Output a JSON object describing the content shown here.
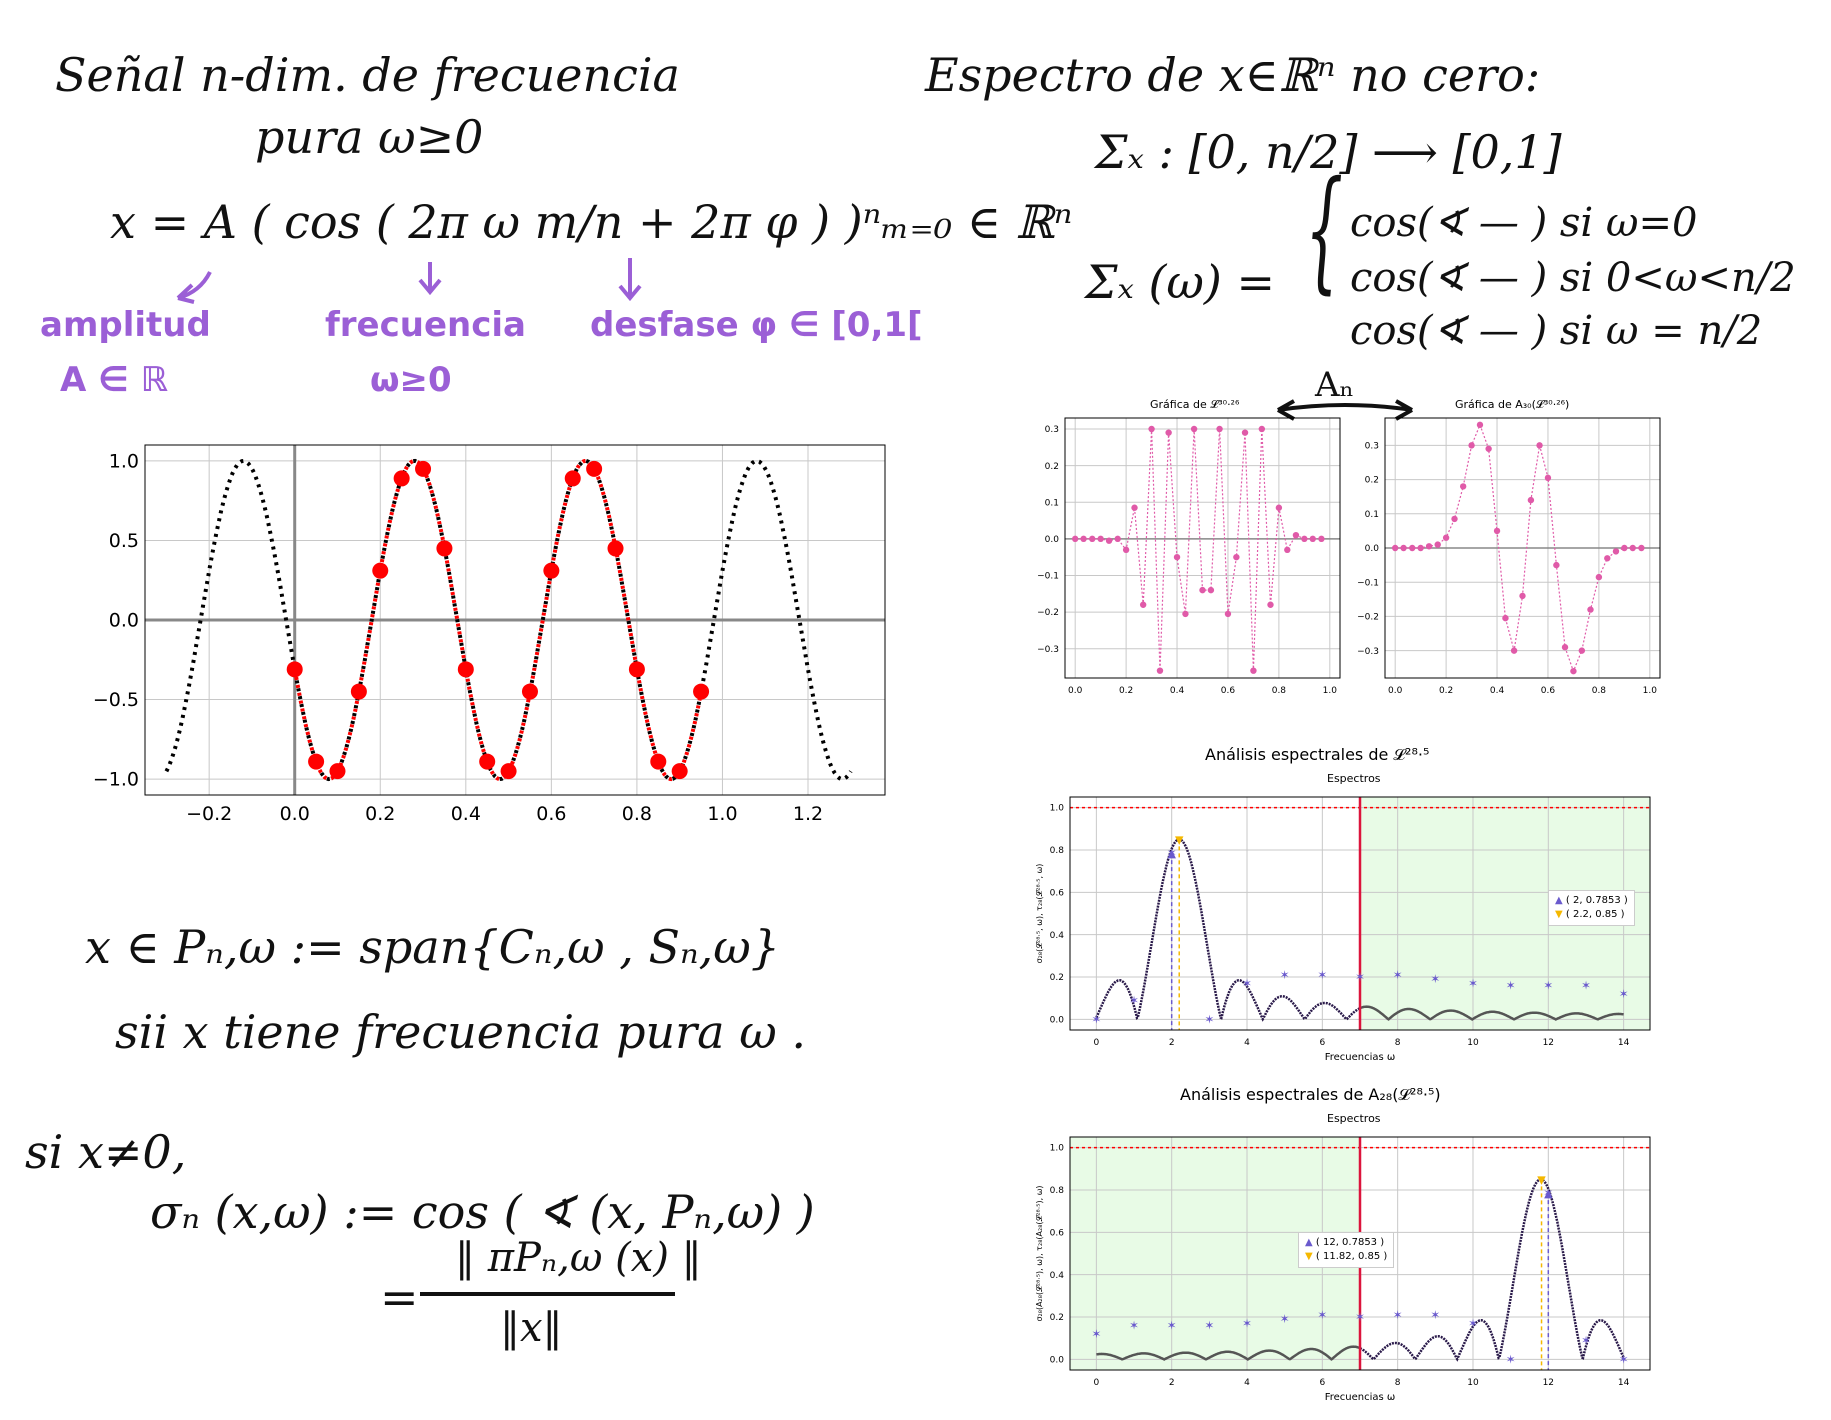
{
  "notes": {
    "title_left_1": "Señal n-dim. de frecuencia",
    "title_left_2": "pura ω≥0",
    "formula_x": "x = A ( cos ( 2π ω m/n + 2π φ ) )ⁿₘ₌₀ ∈ ℝⁿ",
    "amplitude_label": "amplitud",
    "amplitude_domain": "A ∈ ℝ",
    "frequency_label": "frecuencia",
    "frequency_domain": "ω≥0",
    "phase_label": "desfase φ ∈ [0,1[",
    "title_right": "Espectro de x∈ℝⁿ no cero:",
    "spectrum_map": "Σₓ : [0, n/2] ⟶ [0,1]",
    "spectrum_def_lhs": "Σₓ (ω) =",
    "case1": "cos(∢ — )   si  ω=0",
    "case2": "cos(∢ — )   si  0<ω<n/2",
    "case3": "cos(∢ — )   si  ω = n/2",
    "arrow_label": "Aₙ",
    "membership": "x ∈ Pₙ,ω := span{Cₙ,ω , Sₙ,ω}",
    "iff_text": "sii x tiene frecuencia pura ω .",
    "if_nonzero": "si x≠0,",
    "sigma_def": "σₙ (x,ω) := cos ( ∢ (x, Pₙ,ω) )",
    "fraction_num": "‖ πPₙ,ω (x) ‖",
    "fraction_den": "‖x‖",
    "equals": "="
  },
  "colors": {
    "ink": "#111111",
    "purple": "#9b5fd6",
    "red": "#ff0000",
    "pink": "#e05aa8",
    "navy": "#2a1a4a",
    "star": "#6a5acd",
    "orange": "#f5b800",
    "crimson": "#dc143c",
    "green_bg": "#e8fbe6"
  },
  "chart_data": [
    {
      "id": "cosine",
      "type": "line",
      "title": "",
      "xlabel": "",
      "ylabel": "",
      "xlim": [
        -0.35,
        1.38
      ],
      "ylim": [
        -1.1,
        1.1
      ],
      "xticks": [
        "−0.2",
        "0.0",
        "0.2",
        "0.4",
        "0.6",
        "0.8",
        "1.0",
        "1.2"
      ],
      "yticks": [
        "1.0",
        "0.5",
        "0.0",
        "−0.5",
        "−1.0"
      ],
      "grid": true,
      "series": [
        {
          "style": "dotted-black",
          "x_range": [
            -0.3,
            1.3
          ]
        },
        {
          "style": "dotted-red",
          "x_range": [
            0.0,
            0.95
          ]
        }
      ],
      "samples": {
        "x": [
          0.0,
          0.05,
          0.1,
          0.15,
          0.2,
          0.25,
          0.3,
          0.35,
          0.4,
          0.45,
          0.5,
          0.55,
          0.6,
          0.65,
          0.7,
          0.75,
          0.8,
          0.85,
          0.9,
          0.95
        ],
        "y": [
          -0.31,
          -0.89,
          -0.95,
          -0.45,
          0.31,
          0.89,
          0.95,
          0.45,
          -0.31,
          -0.89,
          -0.95,
          -0.45,
          0.31,
          0.89,
          0.95,
          0.45,
          -0.31,
          -0.89,
          -0.95,
          -0.45
        ]
      }
    },
    {
      "id": "signal_L",
      "type": "line",
      "title": "Gráfica de 𝓛³⁰·²⁶",
      "xlim": [
        -0.04,
        1.04
      ],
      "ylim": [
        -0.38,
        0.33
      ],
      "xticks": [
        "0.0",
        "0.2",
        "0.4",
        "0.6",
        "0.8",
        "1.0"
      ],
      "yticks": [
        "0.3",
        "0.2",
        "0.1",
        "0.0",
        "−0.1",
        "−0.2",
        "−0.3"
      ],
      "grid": true,
      "x": [
        0.0,
        0.033,
        0.067,
        0.1,
        0.133,
        0.167,
        0.2,
        0.233,
        0.267,
        0.3,
        0.333,
        0.367,
        0.4,
        0.433,
        0.467,
        0.5,
        0.533,
        0.567,
        0.6,
        0.633,
        0.667,
        0.7,
        0.733,
        0.767,
        0.8,
        0.833,
        0.867,
        0.9,
        0.933,
        0.967
      ],
      "values": [
        0.0,
        0.0,
        0.0,
        0.0,
        -0.005,
        0.0,
        -0.03,
        0.085,
        -0.18,
        0.3,
        -0.36,
        0.29,
        -0.05,
        -0.205,
        0.3,
        -0.14,
        -0.14,
        0.3,
        -0.205,
        -0.05,
        0.29,
        -0.36,
        0.3,
        -0.18,
        0.085,
        -0.03,
        0.01,
        0.0,
        0.0,
        0.0
      ]
    },
    {
      "id": "signal_A",
      "type": "line",
      "title": "Gráfica de A₃₀(𝓛³⁰·²⁶)",
      "xlim": [
        -0.04,
        1.04
      ],
      "ylim": [
        -0.38,
        0.38
      ],
      "xticks": [
        "0.0",
        "0.2",
        "0.4",
        "0.6",
        "0.8",
        "1.0"
      ],
      "yticks": [
        "0.3",
        "0.2",
        "0.1",
        "0.0",
        "−0.1",
        "−0.2",
        "−0.3"
      ],
      "grid": true,
      "x": [
        0.0,
        0.033,
        0.067,
        0.1,
        0.133,
        0.167,
        0.2,
        0.233,
        0.267,
        0.3,
        0.333,
        0.367,
        0.4,
        0.433,
        0.467,
        0.5,
        0.533,
        0.567,
        0.6,
        0.633,
        0.667,
        0.7,
        0.733,
        0.767,
        0.8,
        0.833,
        0.867,
        0.9,
        0.933,
        0.967
      ],
      "values": [
        0.0,
        0.0,
        0.0,
        0.0,
        0.005,
        0.01,
        0.03,
        0.085,
        0.18,
        0.3,
        0.36,
        0.29,
        0.05,
        -0.205,
        -0.3,
        -0.14,
        0.14,
        0.3,
        0.205,
        -0.05,
        -0.29,
        -0.36,
        -0.3,
        -0.18,
        -0.085,
        -0.03,
        -0.01,
        0.0,
        0.0,
        0.0
      ]
    },
    {
      "id": "spectrum_L",
      "type": "line",
      "title": "Análisis espectrales de 𝓛²⁸·⁵",
      "subtitle": "Espectros",
      "xlabel": "Frecuencias ω",
      "ylabel": "σ₂₈(𝓛²⁸·⁵, ω), τ₂₈(𝓛²⁸·⁵, ω)",
      "xlim": [
        -0.7,
        14.7
      ],
      "ylim": [
        -0.05,
        1.05
      ],
      "xticks": [
        "0",
        "2",
        "4",
        "6",
        "8",
        "10",
        "12",
        "14"
      ],
      "yticks": [
        "0.0",
        "0.2",
        "0.4",
        "0.6",
        "0.8",
        "1.0"
      ],
      "green_region": [
        7,
        14.7
      ],
      "vline": 7,
      "hline": 1.0,
      "peak": 2.2,
      "mirror": false,
      "stars": {
        "x": [
          0,
          1,
          2,
          3,
          4,
          5,
          6,
          7,
          8,
          9,
          10,
          11,
          12,
          13,
          14
        ],
        "y": [
          0.0,
          0.09,
          0.785,
          0.0,
          0.17,
          0.21,
          0.21,
          0.2,
          0.21,
          0.19,
          0.17,
          0.16,
          0.16,
          0.16,
          0.12
        ]
      },
      "markers": {
        "up": {
          "x": 2,
          "y": 0.7853
        },
        "down": {
          "x": 2.2,
          "y": 0.85
        }
      },
      "legend": [
        "( 2, 0.7853 )",
        "( 2.2, 0.85 )"
      ],
      "legend_position": "right"
    },
    {
      "id": "spectrum_A",
      "type": "line",
      "title": "Análisis espectrales de A₂₈(𝓛²⁸·⁵)",
      "subtitle": "Espectros",
      "xlabel": "Frecuencias ω",
      "ylabel": "σ₂₈(A₂₈(𝓛²⁸·⁵), ω), τ₂₈(A₂₈(𝓛²⁸·⁵), ω)",
      "xlim": [
        -0.7,
        14.7
      ],
      "ylim": [
        -0.05,
        1.05
      ],
      "xticks": [
        "0",
        "2",
        "4",
        "6",
        "8",
        "10",
        "12",
        "14"
      ],
      "yticks": [
        "0.0",
        "0.2",
        "0.4",
        "0.6",
        "0.8",
        "1.0"
      ],
      "green_region": [
        -0.7,
        7
      ],
      "vline": 7,
      "hline": 1.0,
      "peak": 11.8,
      "mirror": true,
      "stars": {
        "x": [
          0,
          1,
          2,
          3,
          4,
          5,
          6,
          7,
          8,
          9,
          10,
          11,
          12,
          13,
          14
        ],
        "y": [
          0.12,
          0.16,
          0.16,
          0.16,
          0.17,
          0.19,
          0.21,
          0.2,
          0.21,
          0.21,
          0.17,
          0.0,
          0.785,
          0.09,
          0.0
        ]
      },
      "markers": {
        "up": {
          "x": 12,
          "y": 0.7853
        },
        "down": {
          "x": 11.82,
          "y": 0.85
        }
      },
      "legend": [
        "( 12, 0.7853 )",
        "( 11.82, 0.85 )"
      ],
      "legend_position": "center-left"
    }
  ]
}
